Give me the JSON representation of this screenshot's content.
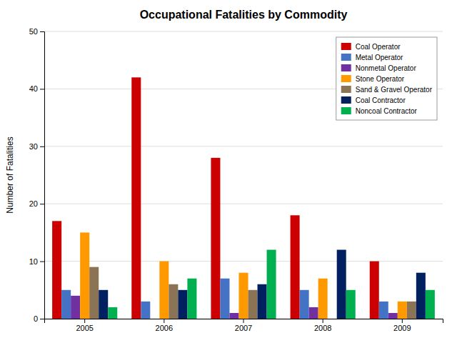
{
  "chart_data": {
    "type": "bar",
    "title": "Occupational Fatalities by Commodity",
    "y_label": "Number of Fatalities",
    "categories": [
      "2005",
      "2006",
      "2007",
      "2008",
      "2009"
    ],
    "series": [
      {
        "name": "Coal Operator",
        "color": "#CC0000",
        "values": [
          17,
          42,
          28,
          18,
          10
        ]
      },
      {
        "name": "Metal Operator",
        "color": "#4472C4",
        "values": [
          5,
          3,
          7,
          5,
          3
        ]
      },
      {
        "name": "Nonmetal Operator",
        "color": "#7030A0",
        "values": [
          4,
          0,
          1,
          2,
          1
        ]
      },
      {
        "name": "Stone Operator",
        "color": "#FF9900",
        "values": [
          15,
          10,
          8,
          7,
          3
        ]
      },
      {
        "name": "Sand & Gravel Operator",
        "color": "#8B7355",
        "values": [
          9,
          6,
          5,
          0,
          3
        ]
      },
      {
        "name": "Coal Contractor",
        "color": "#002060",
        "values": [
          5,
          5,
          6,
          12,
          8
        ]
      },
      {
        "name": "Noncoal Contractor",
        "color": "#00B050",
        "values": [
          2,
          7,
          12,
          5,
          5
        ]
      }
    ],
    "ylim": [
      0,
      50
    ],
    "yticks": [
      0,
      10,
      20,
      30,
      40,
      50
    ],
    "grid": true,
    "legend": "upper right"
  }
}
